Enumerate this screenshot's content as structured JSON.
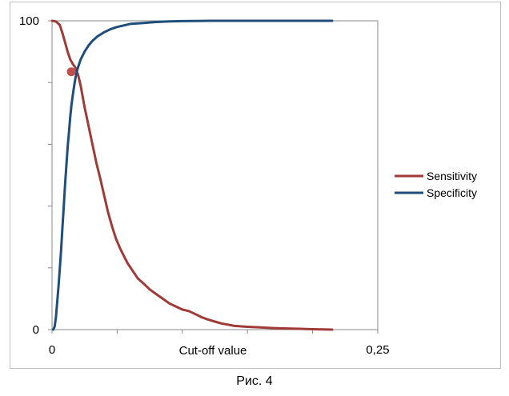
{
  "chart_data": {
    "type": "line",
    "xlabel": "Cut-off value",
    "ylabel": "",
    "xlim": [
      0,
      0.25
    ],
    "ylim": [
      0,
      100
    ],
    "x_tick_labels": [
      {
        "value": 0,
        "label": "0"
      },
      {
        "value": 0.25,
        "label": "0,25"
      }
    ],
    "y_tick_labels": [
      {
        "value": 0,
        "label": "0"
      },
      {
        "value": 100,
        "label": "100"
      }
    ],
    "x_minor_ticks": [
      0.05,
      0.1,
      0.15,
      0.2
    ],
    "y_minor_ticks": [
      20,
      40,
      60,
      80
    ],
    "grid": false,
    "legend_position": "right",
    "series": [
      {
        "name": "Sensitivity",
        "color": "#a03a37",
        "points": [
          [
            0,
            100
          ],
          [
            0.003,
            99.8
          ],
          [
            0.006,
            98.6
          ],
          [
            0.008,
            96
          ],
          [
            0.01,
            93
          ],
          [
            0.012,
            90
          ],
          [
            0.014,
            87.5
          ],
          [
            0.016,
            86
          ],
          [
            0.018,
            84.8
          ],
          [
            0.02,
            82.5
          ],
          [
            0.022,
            79
          ],
          [
            0.025,
            72
          ],
          [
            0.028,
            66
          ],
          [
            0.031,
            60
          ],
          [
            0.034,
            54
          ],
          [
            0.037,
            49
          ],
          [
            0.04,
            43.5
          ],
          [
            0.043,
            38
          ],
          [
            0.046,
            33.5
          ],
          [
            0.049,
            29.5
          ],
          [
            0.052,
            26.5
          ],
          [
            0.055,
            24
          ],
          [
            0.058,
            21.5
          ],
          [
            0.062,
            19
          ],
          [
            0.066,
            16.5
          ],
          [
            0.07,
            15
          ],
          [
            0.075,
            13
          ],
          [
            0.08,
            11.5
          ],
          [
            0.085,
            10
          ],
          [
            0.09,
            8.5
          ],
          [
            0.095,
            7.5
          ],
          [
            0.1,
            6.5
          ],
          [
            0.105,
            6
          ],
          [
            0.11,
            5
          ],
          [
            0.115,
            4
          ],
          [
            0.12,
            3.2
          ],
          [
            0.125,
            2.6
          ],
          [
            0.13,
            2
          ],
          [
            0.135,
            1.6
          ],
          [
            0.14,
            1.2
          ],
          [
            0.15,
            0.9
          ],
          [
            0.16,
            0.7
          ],
          [
            0.17,
            0.5
          ],
          [
            0.18,
            0.35
          ],
          [
            0.19,
            0.25
          ],
          [
            0.2,
            0.12
          ],
          [
            0.215,
            0
          ]
        ]
      },
      {
        "name": "Specificity",
        "color": "#1f4e7a",
        "points": [
          [
            0.001,
            0
          ],
          [
            0.002,
            1
          ],
          [
            0.003,
            4
          ],
          [
            0.004,
            9
          ],
          [
            0.005,
            14
          ],
          [
            0.006,
            20
          ],
          [
            0.007,
            26
          ],
          [
            0.008,
            33
          ],
          [
            0.009,
            40
          ],
          [
            0.01,
            47
          ],
          [
            0.011,
            53
          ],
          [
            0.012,
            59
          ],
          [
            0.013,
            64
          ],
          [
            0.014,
            69
          ],
          [
            0.015,
            73
          ],
          [
            0.016,
            76
          ],
          [
            0.017,
            79
          ],
          [
            0.018,
            81.5
          ],
          [
            0.019,
            83.5
          ],
          [
            0.02,
            85
          ],
          [
            0.022,
            87.5
          ],
          [
            0.025,
            90
          ],
          [
            0.028,
            92
          ],
          [
            0.031,
            93.5
          ],
          [
            0.035,
            95
          ],
          [
            0.04,
            96.3
          ],
          [
            0.045,
            97.3
          ],
          [
            0.05,
            98
          ],
          [
            0.055,
            98.5
          ],
          [
            0.06,
            99
          ],
          [
            0.07,
            99.3
          ],
          [
            0.08,
            99.6
          ],
          [
            0.09,
            99.8
          ],
          [
            0.1,
            99.9
          ],
          [
            0.12,
            100
          ],
          [
            0.15,
            100
          ],
          [
            0.215,
            100
          ]
        ]
      }
    ],
    "annotations": [
      {
        "type": "marker",
        "x": 0.0148,
        "y": 83.5,
        "color": "#c0504d"
      }
    ]
  },
  "caption": "Рис. 4"
}
